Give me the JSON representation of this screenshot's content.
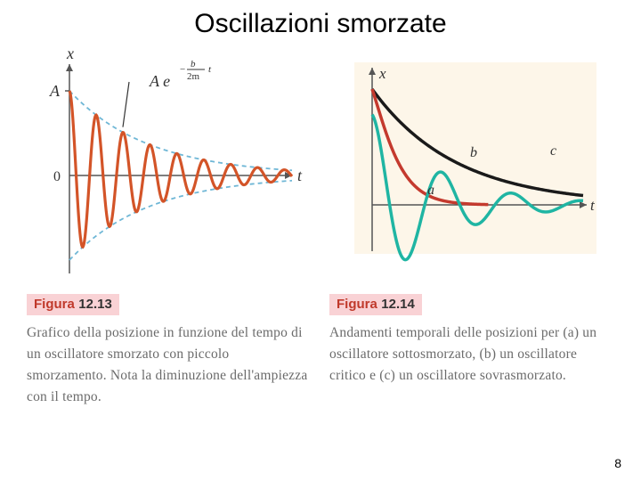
{
  "page": {
    "title": "Oscillazioni smorzate",
    "number": "8"
  },
  "left": {
    "axis_y_label": "x",
    "axis_x_label": "t",
    "amplitude_label": "A",
    "zero_label": "0",
    "envelope_formula_a": "A e",
    "envelope_exp_num": "b",
    "envelope_exp_den": "2m",
    "envelope_exp_t": "t",
    "caption_figura": "Figura",
    "caption_num": "12.13",
    "caption_text": "Grafico della posizione in funzione del tempo di un oscillatore smorzato con piccolo smorzamento. Nota la diminuzione dell'ampiezza con il tempo.",
    "chart": {
      "type": "line",
      "background_color": "#ffffff",
      "axis_color": "#555555",
      "envelope_color": "#6fb7d6",
      "damped_color": "#d35428",
      "pointer_color": "#333333",
      "xlim": [
        0,
        10
      ],
      "ylim": [
        -1.1,
        1.1
      ],
      "decay_constant": 0.28,
      "angular_frequency": 5.2,
      "initial_amplitude": 1.0
    }
  },
  "right": {
    "axis_y_label": "x",
    "axis_x_label": "t",
    "label_a": "a",
    "label_b": "b",
    "label_c": "c",
    "caption_figura": "Figura",
    "caption_num": "12.14",
    "caption_text": "Andamenti temporali delle posizioni per (a) un oscillatore sottosmorzato, (b) un oscillatore critico e (c) un oscillatore sovrasmorzato.",
    "chart": {
      "type": "line",
      "background_color": "#fdf6e9",
      "axis_color": "#555555",
      "color_a": "#1fb5a3",
      "color_b": "#c43a2e",
      "color_c": "#1a1a1a",
      "xlim": [
        0,
        14
      ],
      "ylim": [
        -1.0,
        1.2
      ],
      "curves": {
        "a": {
          "decay": 0.22,
          "omega": 1.35,
          "A": 1.0
        },
        "b": {
          "decay": 0.55,
          "A": 1.0
        },
        "c": {
          "decay": 0.18,
          "A": 1.0
        }
      }
    }
  }
}
